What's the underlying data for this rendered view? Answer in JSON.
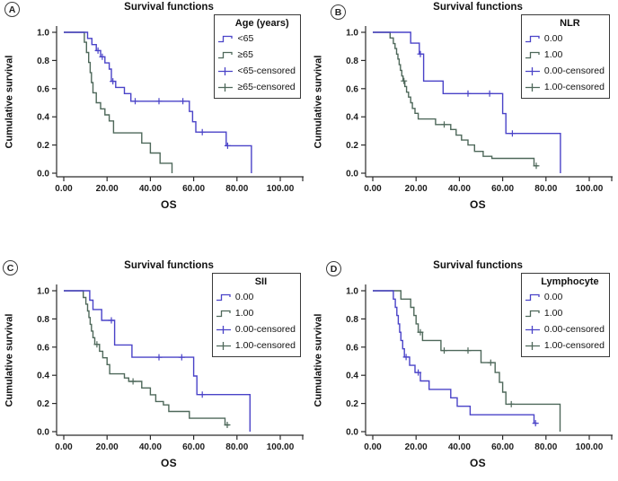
{
  "figure_type": "kaplan-meier-survival-grid",
  "colors": {
    "group1_blue": "#4a43c8",
    "group2_green": "#4e685a",
    "axis": "#2b2b2b",
    "text": "#111111"
  },
  "chart_data": [
    {
      "panel_label": "A",
      "type": "line",
      "title": "Survival functions",
      "xlabel": "OS",
      "ylabel": "Cumulative survival",
      "xlim": [
        0,
        100
      ],
      "ylim": [
        0,
        1
      ],
      "x_ticks": [
        "0.00",
        "20.00",
        "40.00",
        "60.00",
        "80.00",
        "100.00"
      ],
      "y_ticks": [
        "0.0",
        "0.2",
        "0.4",
        "0.6",
        "0.8",
        "1.0"
      ],
      "grid": false,
      "legend_position": "top-right",
      "legend_title": "Age (years)",
      "legend_entries": [
        {
          "label": "<65",
          "symbol": "step",
          "color": "#4a43c8"
        },
        {
          "label": "≥65",
          "symbol": "step",
          "color": "#4e685a"
        },
        {
          "label": "<65-censored",
          "symbol": "censor",
          "color": "#4a43c8"
        },
        {
          "label": "≥65-censored",
          "symbol": "censor",
          "color": "#4e685a"
        }
      ],
      "series": [
        {
          "name": "<65",
          "color": "#4a43c8",
          "steps": [
            [
              0,
              1
            ],
            [
              11,
              0.957
            ],
            [
              13,
              0.913
            ],
            [
              15,
              0.87
            ],
            [
              17,
              0.826
            ],
            [
              19,
              0.783
            ],
            [
              21,
              0.739
            ],
            [
              22,
              0.652
            ],
            [
              24,
              0.609
            ],
            [
              28,
              0.565
            ],
            [
              31,
              0.511
            ],
            [
              58,
              0.438
            ],
            [
              59.5,
              0.365
            ],
            [
              61,
              0.292
            ],
            [
              75,
              0.195
            ],
            [
              86.7,
              0
            ]
          ],
          "censored": [
            [
              15.8,
              0.87
            ],
            [
              17.8,
              0.826
            ],
            [
              22.7,
              0.652
            ],
            [
              33,
              0.511
            ],
            [
              44,
              0.511
            ],
            [
              55,
              0.511
            ],
            [
              64,
              0.292
            ],
            [
              75.7,
              0.195
            ]
          ]
        },
        {
          "name": "≥65",
          "color": "#4e685a",
          "steps": [
            [
              0,
              1
            ],
            [
              9.5,
              0.929
            ],
            [
              10.5,
              0.857
            ],
            [
              11.5,
              0.786
            ],
            [
              12.2,
              0.714
            ],
            [
              12.8,
              0.643
            ],
            [
              13.5,
              0.571
            ],
            [
              15,
              0.5
            ],
            [
              17,
              0.457
            ],
            [
              19,
              0.414
            ],
            [
              21,
              0.371
            ],
            [
              23,
              0.286
            ],
            [
              36,
              0.214
            ],
            [
              40,
              0.143
            ],
            [
              44.5,
              0.071
            ],
            [
              50,
              0
            ]
          ],
          "censored": []
        }
      ]
    },
    {
      "panel_label": "B",
      "type": "line",
      "title": "Survival functions",
      "xlabel": "OS",
      "ylabel": "Cumulative survival",
      "xlim": [
        0,
        100
      ],
      "ylim": [
        0,
        1
      ],
      "x_ticks": [
        "0.00",
        "20.00",
        "40.00",
        "60.00",
        "80.00",
        "100.00"
      ],
      "y_ticks": [
        "0.0",
        "0.2",
        "0.4",
        "0.6",
        "0.8",
        "1.0"
      ],
      "grid": false,
      "legend_position": "top-right",
      "legend_title": "NLR",
      "legend_entries": [
        {
          "label": "0.00",
          "symbol": "step",
          "color": "#4a43c8"
        },
        {
          "label": "1.00",
          "symbol": "step",
          "color": "#4e685a"
        },
        {
          "label": "0.00-censored",
          "symbol": "censor",
          "color": "#4a43c8"
        },
        {
          "label": "1.00-censored",
          "symbol": "censor",
          "color": "#4e685a"
        }
      ],
      "series": [
        {
          "name": "0.00",
          "color": "#4a43c8",
          "steps": [
            [
              0,
              1
            ],
            [
              17.5,
              0.923
            ],
            [
              21.5,
              0.846
            ],
            [
              23.5,
              0.654
            ],
            [
              32.5,
              0.565
            ],
            [
              60,
              0.423
            ],
            [
              61.5,
              0.282
            ],
            [
              86.7,
              0
            ]
          ],
          "censored": [
            [
              22,
              0.846
            ],
            [
              44,
              0.565
            ],
            [
              54,
              0.565
            ],
            [
              64.5,
              0.282
            ]
          ]
        },
        {
          "name": "1.00",
          "color": "#4e685a",
          "steps": [
            [
              0,
              1
            ],
            [
              8,
              0.96
            ],
            [
              9.5,
              0.92
            ],
            [
              10.3,
              0.885
            ],
            [
              11,
              0.845
            ],
            [
              11.6,
              0.81
            ],
            [
              12.2,
              0.77
            ],
            [
              12.8,
              0.73
            ],
            [
              13.4,
              0.69
            ],
            [
              14,
              0.655
            ],
            [
              14.8,
              0.615
            ],
            [
              15.6,
              0.575
            ],
            [
              16.5,
              0.54
            ],
            [
              17.5,
              0.5
            ],
            [
              18.3,
              0.46
            ],
            [
              19.5,
              0.425
            ],
            [
              21,
              0.385
            ],
            [
              29,
              0.345
            ],
            [
              36,
              0.31
            ],
            [
              38.5,
              0.27
            ],
            [
              41,
              0.235
            ],
            [
              44,
              0.2
            ],
            [
              47,
              0.155
            ],
            [
              51,
              0.12
            ],
            [
              55,
              0.105
            ],
            [
              74.5,
              0.052
            ],
            [
              76.5,
              0.052
            ]
          ],
          "censored": [
            [
              14.4,
              0.655
            ],
            [
              33,
              0.345
            ],
            [
              75.5,
              0.052
            ]
          ]
        }
      ]
    },
    {
      "panel_label": "C",
      "type": "line",
      "title": "Survival functions",
      "xlabel": "OS",
      "ylabel": "Cumulative survival",
      "xlim": [
        0,
        100
      ],
      "ylim": [
        0,
        1
      ],
      "x_ticks": [
        "0.00",
        "20.00",
        "40.00",
        "60.00",
        "80.00",
        "100.00"
      ],
      "y_ticks": [
        "0.0",
        "0.2",
        "0.4",
        "0.6",
        "0.8",
        "1.0"
      ],
      "grid": false,
      "legend_position": "top-right",
      "legend_title": "SII",
      "legend_entries": [
        {
          "label": "0.00",
          "symbol": "step",
          "color": "#4a43c8"
        },
        {
          "label": "1.00",
          "symbol": "step",
          "color": "#4e685a"
        },
        {
          "label": "0.00-censored",
          "symbol": "censor",
          "color": "#4a43c8"
        },
        {
          "label": "1.00-censored",
          "symbol": "censor",
          "color": "#4e685a"
        }
      ],
      "series": [
        {
          "name": "0.00",
          "color": "#4a43c8",
          "steps": [
            [
              0,
              1
            ],
            [
              12,
              0.933
            ],
            [
              13.5,
              0.867
            ],
            [
              17.5,
              0.79
            ],
            [
              23.5,
              0.615
            ],
            [
              31.5,
              0.528
            ],
            [
              60,
              0.395
            ],
            [
              61.5,
              0.263
            ],
            [
              86,
              0
            ]
          ],
          "censored": [
            [
              22,
              0.79
            ],
            [
              44,
              0.528
            ],
            [
              54.5,
              0.528
            ],
            [
              64,
              0.263
            ]
          ]
        },
        {
          "name": "1.00",
          "color": "#4e685a",
          "steps": [
            [
              0,
              1
            ],
            [
              9,
              0.952
            ],
            [
              10.2,
              0.905
            ],
            [
              11,
              0.857
            ],
            [
              11.6,
              0.81
            ],
            [
              12.2,
              0.762
            ],
            [
              12.8,
              0.714
            ],
            [
              13.5,
              0.667
            ],
            [
              14.3,
              0.619
            ],
            [
              16.5,
              0.571
            ],
            [
              18,
              0.524
            ],
            [
              20,
              0.476
            ],
            [
              21.2,
              0.41
            ],
            [
              28,
              0.381
            ],
            [
              30,
              0.357
            ],
            [
              36,
              0.31
            ],
            [
              40,
              0.262
            ],
            [
              42.5,
              0.214
            ],
            [
              46,
              0.19
            ],
            [
              48.5,
              0.143
            ],
            [
              58,
              0.095
            ],
            [
              74.5,
              0.048
            ],
            [
              76.5,
              0.048
            ]
          ],
          "censored": [
            [
              15.3,
              0.619
            ],
            [
              32,
              0.357
            ],
            [
              75.5,
              0.048
            ]
          ]
        }
      ]
    },
    {
      "panel_label": "D",
      "type": "line",
      "title": "Survival functions",
      "xlabel": "OS",
      "ylabel": "Cumulative survival",
      "xlim": [
        0,
        100
      ],
      "ylim": [
        0,
        1
      ],
      "x_ticks": [
        "0.00",
        "20.00",
        "40.00",
        "60.00",
        "80.00",
        "100.00"
      ],
      "y_ticks": [
        "0.0",
        "0.2",
        "0.4",
        "0.6",
        "0.8",
        "1.0"
      ],
      "grid": false,
      "legend_position": "top-right",
      "legend_title": "Lymphocyte",
      "legend_entries": [
        {
          "label": "0.00",
          "symbol": "step",
          "color": "#4a43c8"
        },
        {
          "label": "1.00",
          "symbol": "step",
          "color": "#4e685a"
        },
        {
          "label": "0.00-censored",
          "symbol": "censor",
          "color": "#4a43c8"
        },
        {
          "label": "1.00-censored",
          "symbol": "censor",
          "color": "#4e685a"
        }
      ],
      "series": [
        {
          "name": "0.00",
          "color": "#4a43c8",
          "steps": [
            [
              0,
              1
            ],
            [
              9.5,
              0.941
            ],
            [
              10.4,
              0.882
            ],
            [
              11.1,
              0.824
            ],
            [
              11.8,
              0.765
            ],
            [
              12.4,
              0.706
            ],
            [
              13,
              0.647
            ],
            [
              13.8,
              0.588
            ],
            [
              14.6,
              0.529
            ],
            [
              17,
              0.471
            ],
            [
              19.5,
              0.42
            ],
            [
              22,
              0.36
            ],
            [
              26,
              0.3
            ],
            [
              36,
              0.24
            ],
            [
              39,
              0.18
            ],
            [
              45,
              0.12
            ],
            [
              74.5,
              0.06
            ],
            [
              76,
              0.06
            ]
          ],
          "censored": [
            [
              15.4,
              0.529
            ],
            [
              21,
              0.42
            ],
            [
              75.2,
              0.06
            ]
          ]
        },
        {
          "name": "1.00",
          "color": "#4e685a",
          "steps": [
            [
              0,
              1
            ],
            [
              13,
              0.941
            ],
            [
              17.5,
              0.882
            ],
            [
              19,
              0.824
            ],
            [
              20,
              0.765
            ],
            [
              21,
              0.706
            ],
            [
              23,
              0.647
            ],
            [
              31.5,
              0.576
            ],
            [
              50,
              0.49
            ],
            [
              56.5,
              0.42
            ],
            [
              58.5,
              0.35
            ],
            [
              60,
              0.28
            ],
            [
              61.5,
              0.195
            ],
            [
              86.5,
              0
            ]
          ],
          "censored": [
            [
              22,
              0.706
            ],
            [
              33,
              0.576
            ],
            [
              44,
              0.576
            ],
            [
              54.5,
              0.49
            ],
            [
              64,
              0.195
            ]
          ]
        }
      ]
    }
  ]
}
